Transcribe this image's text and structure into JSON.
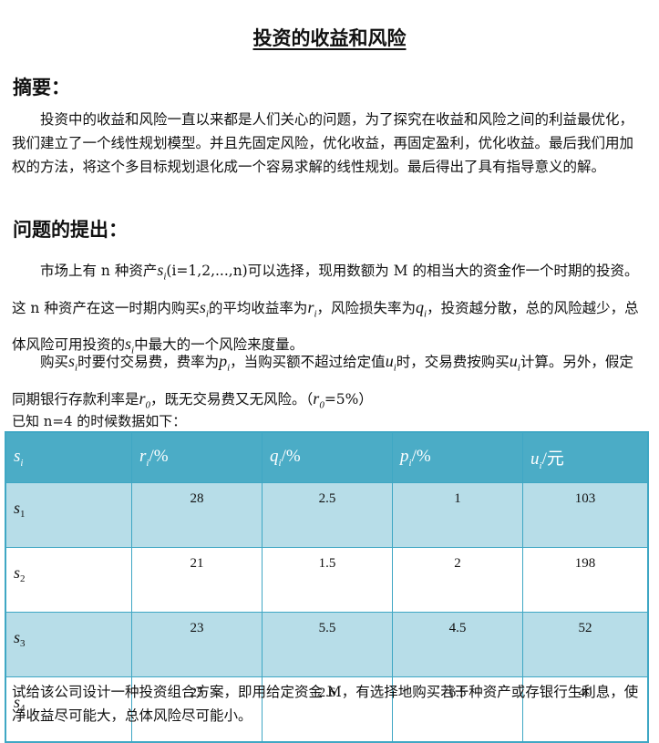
{
  "title": "投资的收益和风险",
  "abstract": {
    "heading": "摘要：",
    "text": "投资中的收益和风险一直以来都是人们关心的问题，为了探究在收益和风险之间的利益最优化，我们建立了一个线性规划模型。并且先固定风险，优化收益，再固定盈利，优化收益。最后我们用加权的方法，将这个多目标规划退化成一个容易求解的线性规划。最后得出了具有指导意义的解。"
  },
  "problem": {
    "heading": "问题的提出：",
    "p1": {
      "t1": "市场上有 n 种资产",
      "t2": "(i=1,2,...,n)可以选择，现用数额为 M 的相当大的资金作一个时期的投资。这 n 种资产在这一时期内购买",
      "t3": "的平均收益率为",
      "t4": "，风险损失率为",
      "t5": "，投资越分散，总的风险越少，总体风险可用投资的",
      "t6": "中最大的一个风险来度量。"
    },
    "p2": {
      "t1": "购买",
      "t2": "时要付交易费，费率为",
      "t3": "，当购买额不超过给定值",
      "t4": "时，交易费按购买",
      "t5": "计算。另外，假定同期银行存款利率是",
      "t6": "，既无交易费又无风险。（",
      "t7": "=5%）"
    },
    "known": "已知 n=4 的时候数据如下："
  },
  "table": {
    "headers": [
      {
        "sym": "s",
        "sub": "i",
        "unit": ""
      },
      {
        "sym": "r",
        "sub": "i",
        "unit": "/%"
      },
      {
        "sym": "q",
        "sub": "i",
        "unit": "/%"
      },
      {
        "sym": "p",
        "sub": "i",
        "unit": "/%"
      },
      {
        "sym": "u",
        "sub": "i",
        "unit": "/元"
      }
    ],
    "rows": [
      {
        "label": "s",
        "sub": "1",
        "values": [
          "28",
          "2.5",
          "1",
          "103"
        ]
      },
      {
        "label": "s",
        "sub": "2",
        "values": [
          "21",
          "1.5",
          "2",
          "198"
        ]
      },
      {
        "label": "s",
        "sub": "3",
        "values": [
          "23",
          "5.5",
          "4.5",
          "52"
        ]
      },
      {
        "label": "s",
        "sub": "4",
        "values": [
          "25",
          "2.6",
          "6.5",
          "40"
        ]
      }
    ]
  },
  "closing": "试给该公司设计一种投资组合方案，即用给定资金 M，有选择地购买若干种资产或存银行生利息，使净收益尽可能大，总体风险尽可能小。",
  "colors": {
    "header_bg": "#4bacc6",
    "shaded_row": "#b7dde8",
    "border": "#3fa7c4"
  }
}
